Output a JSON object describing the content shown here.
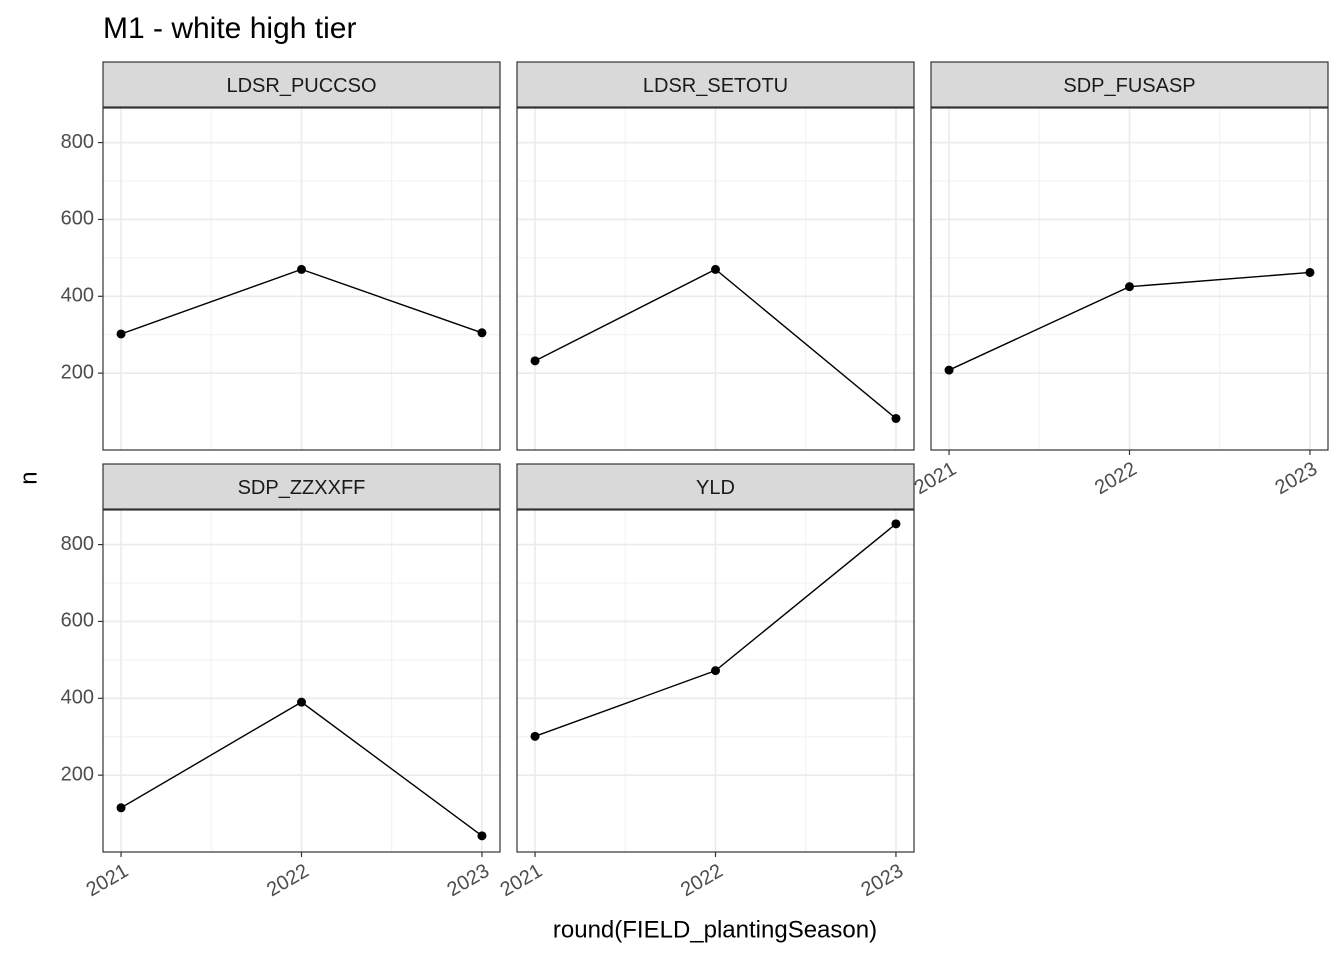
{
  "title": "M1 - white high tier",
  "x_label": "round(FIELD_plantingSeason)",
  "y_label": "n",
  "chart_data": [
    {
      "type": "line",
      "title": "LDSR_PUCCSO",
      "x": [
        2021,
        2022,
        2023
      ],
      "values": [
        302,
        470,
        305
      ],
      "color": "#000000",
      "xlim": [
        2020.9,
        2023.1
      ],
      "xticks": [
        2021,
        2022,
        2023
      ],
      "ylim": [
        0,
        890
      ],
      "yticks": [
        200,
        400,
        600,
        800
      ],
      "grid": true
    },
    {
      "type": "line",
      "title": "LDSR_SETOTU",
      "x": [
        2021,
        2022,
        2023
      ],
      "values": [
        232,
        470,
        82
      ],
      "color": "#000000",
      "xlim": [
        2020.9,
        2023.1
      ],
      "xticks": [
        2021,
        2022,
        2023
      ],
      "ylim": [
        0,
        890
      ],
      "yticks": [
        200,
        400,
        600,
        800
      ],
      "grid": true
    },
    {
      "type": "line",
      "title": "SDP_FUSASP",
      "x": [
        2021,
        2022,
        2023
      ],
      "values": [
        208,
        425,
        462
      ],
      "color": "#000000",
      "xlim": [
        2020.9,
        2023.1
      ],
      "xticks": [
        2021,
        2022,
        2023
      ],
      "ylim": [
        0,
        890
      ],
      "yticks": [
        200,
        400,
        600,
        800
      ],
      "grid": true
    },
    {
      "type": "line",
      "title": "SDP_ZZXXFF",
      "x": [
        2021,
        2022,
        2023
      ],
      "values": [
        115,
        390,
        42
      ],
      "color": "#000000",
      "xlim": [
        2020.9,
        2023.1
      ],
      "xticks": [
        2021,
        2022,
        2023
      ],
      "ylim": [
        0,
        890
      ],
      "yticks": [
        200,
        400,
        600,
        800
      ],
      "grid": true
    },
    {
      "type": "line",
      "title": "YLD",
      "x": [
        2021,
        2022,
        2023
      ],
      "values": [
        301,
        472,
        854
      ],
      "color": "#000000",
      "xlim": [
        2020.9,
        2023.1
      ],
      "xticks": [
        2021,
        2022,
        2023
      ],
      "ylim": [
        0,
        890
      ],
      "yticks": [
        200,
        400,
        600,
        800
      ],
      "grid": true
    }
  ]
}
